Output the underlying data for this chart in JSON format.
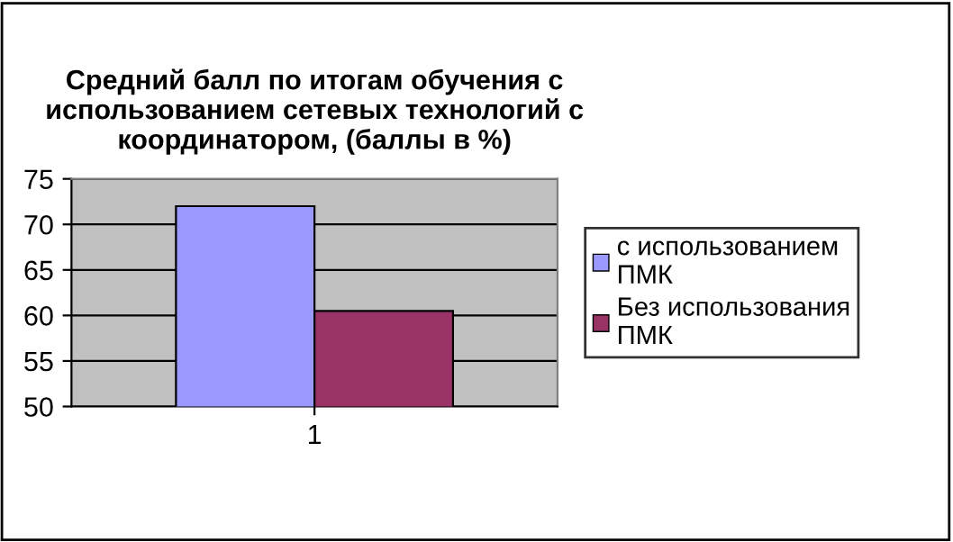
{
  "chart_data": {
    "type": "bar",
    "title": "Средний балл по итогам обучения с\nиспользованием сетевых технологий с\nкоординатором, (баллы в %)",
    "categories": [
      "1"
    ],
    "series": [
      {
        "name": "с использованием\nПМК",
        "color": "#9999ff",
        "values": [
          72
        ]
      },
      {
        "name": "Без использования\nПМК",
        "color": "#993366",
        "values": [
          60.5
        ]
      }
    ],
    "ylim": [
      50,
      75
    ],
    "yticks": [
      50,
      55,
      60,
      65,
      70,
      75
    ],
    "grid": "y",
    "legend": "right"
  }
}
